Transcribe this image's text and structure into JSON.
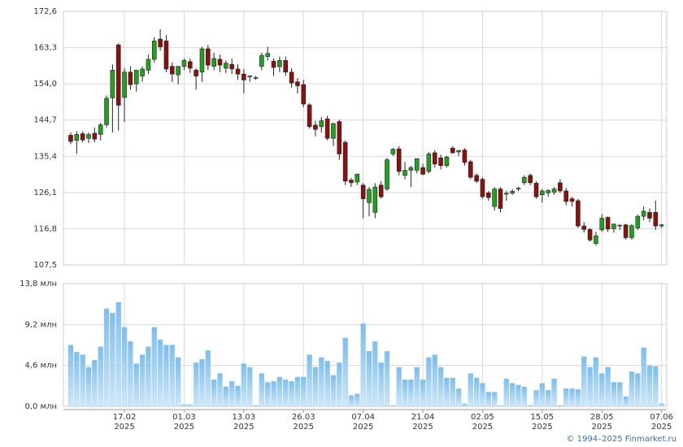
{
  "chart_data": [
    {
      "type": "candlestick",
      "up_color": "#22a022",
      "down_color": "#8b1010",
      "ylim": [
        107.5,
        172.6
      ],
      "yticks": [
        {
          "value": 107.5,
          "label": "107,5"
        },
        {
          "value": 116.8,
          "label": "116,8"
        },
        {
          "value": 126.1,
          "label": "126,1"
        },
        {
          "value": 135.4,
          "label": "135,4"
        },
        {
          "value": 144.7,
          "label": "144,7"
        },
        {
          "value": 154.0,
          "label": "154,0"
        },
        {
          "value": 163.3,
          "label": "163,3"
        },
        {
          "value": 172.6,
          "label": "172,6"
        }
      ],
      "grid": true,
      "open": [
        140.8,
        139.5,
        141.2,
        140.0,
        141.3,
        141.0,
        143.5,
        150.4,
        164.0,
        150.5,
        157.0,
        154.0,
        156.0,
        157.5,
        160.3,
        165.5,
        165.0,
        158.5,
        156.3,
        158.5,
        159.7,
        157.5,
        157.0,
        163.0,
        158.5,
        160.3,
        158.0,
        159.0,
        157.8,
        156.5,
        155.8,
        155.5,
        158.5,
        161.0,
        159.8,
        158.4,
        160.0,
        157.0,
        154.5,
        153.8,
        148.6,
        143.4,
        143.0,
        145.0,
        140.0,
        144.3,
        139.0,
        129.3,
        128.8,
        128.0,
        123.5,
        121.0,
        128.0,
        127.0,
        136.0,
        137.3,
        130.5,
        131.8,
        131.8,
        132.5,
        131.5,
        136.3,
        135.0,
        133.0,
        137.5,
        136.5,
        137.0,
        134.0,
        130.5,
        129.5,
        126.0,
        122.5,
        127.0,
        125.8,
        125.9,
        127.0,
        128.6,
        130.5,
        128.5,
        125.5,
        126.0,
        126.2,
        128.6,
        126.5,
        124.5,
        124.0,
        117.5,
        116.6,
        113.0,
        116.5,
        119.7,
        116.8,
        117.5,
        117.8,
        114.5,
        117.0,
        120.0,
        121.0,
        121.0,
        117.5
      ],
      "high": [
        141.5,
        141.8,
        141.8,
        141.5,
        142.8,
        144.0,
        151.0,
        159.0,
        164.4,
        158.0,
        158.5,
        157.5,
        158.5,
        161.5,
        166.0,
        168.0,
        166.5,
        159.5,
        158.5,
        160.5,
        160.5,
        158.0,
        163.5,
        164.0,
        162.0,
        161.5,
        160.0,
        160.5,
        159.0,
        157.8,
        156.2,
        156.0,
        162.0,
        163.5,
        160.5,
        161.0,
        161.0,
        158.0,
        155.5,
        155.0,
        149.0,
        144.5,
        145.5,
        145.8,
        144.0,
        144.8,
        139.5,
        129.8,
        131.0,
        128.5,
        127.5,
        128.5,
        129.0,
        135.0,
        137.5,
        138.0,
        134.0,
        133.0,
        134.5,
        133.5,
        136.5,
        137.0,
        135.8,
        135.5,
        138.0,
        137.0,
        137.5,
        134.5,
        131.0,
        130.0,
        126.5,
        127.5,
        127.5,
        126.5,
        127.0,
        127.5,
        130.5,
        131.0,
        129.0,
        127.0,
        127.0,
        127.5,
        129.5,
        127.3,
        125.0,
        124.5,
        118.5,
        117.0,
        116.0,
        120.5,
        120.0,
        118.0,
        118.0,
        118.0,
        118.0,
        120.5,
        122.5,
        122.0,
        124.0,
        118.0
      ],
      "low": [
        138.5,
        136.0,
        139.0,
        138.8,
        139.0,
        139.5,
        142.8,
        141.5,
        142.0,
        144.2,
        152.5,
        152.0,
        154.5,
        156.5,
        159.5,
        162.5,
        157.0,
        154.5,
        153.8,
        157.5,
        156.8,
        152.5,
        154.5,
        157.5,
        157.5,
        157.0,
        156.8,
        156.5,
        155.0,
        151.5,
        154.5,
        155.0,
        157.5,
        160.0,
        156.0,
        157.0,
        156.0,
        153.0,
        151.5,
        148.0,
        142.5,
        140.5,
        141.5,
        139.5,
        138.0,
        134.5,
        128.0,
        127.5,
        128.0,
        119.5,
        120.0,
        119.5,
        124.5,
        126.5,
        135.5,
        130.5,
        129.5,
        127.5,
        131.0,
        130.5,
        131.0,
        132.5,
        132.0,
        132.5,
        136.0,
        135.5,
        133.0,
        129.5,
        128.5,
        124.5,
        124.0,
        121.5,
        121.0,
        124.0,
        125.5,
        126.5,
        128.0,
        128.0,
        124.5,
        123.5,
        125.0,
        125.5,
        126.0,
        122.8,
        122.5,
        117.0,
        115.8,
        113.5,
        112.5,
        116.0,
        116.0,
        115.8,
        116.5,
        114.0,
        114.0,
        116.5,
        119.0,
        118.5,
        116.5,
        117.0
      ],
      "close": [
        139.2,
        141.0,
        139.6,
        141.0,
        139.8,
        143.5,
        150.3,
        157.5,
        148.5,
        157.0,
        153.8,
        157.5,
        157.8,
        160.3,
        165.0,
        163.5,
        157.8,
        156.5,
        158.5,
        160.0,
        158.0,
        156.0,
        163.0,
        158.8,
        160.5,
        158.8,
        159.3,
        157.8,
        156.5,
        155.0,
        156.0,
        155.6,
        161.3,
        161.8,
        158.2,
        160.0,
        157.0,
        154.2,
        153.5,
        148.8,
        143.0,
        142.3,
        144.5,
        140.0,
        143.8,
        136.0,
        129.0,
        128.6,
        130.8,
        124.5,
        126.9,
        127.5,
        125.0,
        134.5,
        137.2,
        131.5,
        131.8,
        132.5,
        134.8,
        130.8,
        136.0,
        133.4,
        133.0,
        135.2,
        136.3,
        136.9,
        133.8,
        130.0,
        129.0,
        125.0,
        124.8,
        127.0,
        122.0,
        125.9,
        126.4,
        127.2,
        130.0,
        128.6,
        125.0,
        126.5,
        126.6,
        127.0,
        126.5,
        123.8,
        123.8,
        117.5,
        116.6,
        113.9,
        115.0,
        119.5,
        116.7,
        118.0,
        117.7,
        114.5,
        117.6,
        120.0,
        121.3,
        119.5,
        117.5,
        117.8
      ]
    },
    {
      "type": "bar",
      "color": "#8cc6f0",
      "ylim": [
        0,
        13.8
      ],
      "yticks": [
        {
          "value": 0,
          "label": "0,0 млн"
        },
        {
          "value": 4.6,
          "label": "4,6 млн"
        },
        {
          "value": 9.2,
          "label": "9,2 млн"
        },
        {
          "value": 13.8,
          "label": "13,8 млн"
        }
      ],
      "grid": true,
      "categories": [
        null,
        null,
        null,
        null,
        null,
        null,
        null,
        null,
        null,
        "17.02\n2025",
        null,
        null,
        null,
        null,
        null,
        null,
        null,
        null,
        null,
        "01.03\n2025",
        null,
        null,
        null,
        null,
        null,
        null,
        null,
        null,
        null,
        "13.03\n2025",
        null,
        null,
        null,
        null,
        null,
        null,
        null,
        null,
        null,
        "26.03\n2025",
        null,
        null,
        null,
        null,
        null,
        null,
        null,
        null,
        null,
        "07.04\n2025",
        null,
        null,
        null,
        null,
        null,
        null,
        null,
        null,
        null,
        "21.04\n2025",
        null,
        null,
        null,
        null,
        null,
        null,
        null,
        null,
        null,
        "02.05\n2025",
        null,
        null,
        null,
        null,
        null,
        null,
        null,
        null,
        null,
        "15.05\n2025",
        null,
        null,
        null,
        null,
        null,
        null,
        null,
        null,
        null,
        "28.05\n2025",
        null,
        null,
        null,
        null,
        null,
        null,
        null,
        null,
        null,
        "07.06\n2025"
      ],
      "values": [
        6.9,
        6.1,
        5.8,
        4.4,
        5.2,
        6.7,
        11.0,
        10.5,
        11.7,
        8.9,
        7.3,
        4.8,
        5.8,
        6.7,
        8.9,
        7.5,
        6.9,
        6.9,
        5.5,
        0.2,
        0.2,
        4.9,
        5.3,
        6.3,
        3.0,
        3.7,
        2.2,
        2.8,
        2.3,
        4.8,
        4.4,
        0.1,
        3.7,
        2.7,
        2.8,
        3.3,
        3.0,
        2.8,
        3.3,
        3.3,
        5.8,
        4.4,
        5.5,
        5.1,
        3.5,
        4.9,
        7.7,
        1.2,
        1.4,
        9.3,
        6.2,
        7.3,
        4.9,
        6.2,
        0.1,
        4.4,
        3.0,
        3.0,
        4.4,
        3.0,
        5.5,
        5.8,
        4.4,
        3.2,
        3.2,
        2.0,
        0.3,
        3.7,
        3.2,
        2.6,
        1.6,
        1.6,
        0.1,
        3.1,
        2.6,
        2.4,
        2.2,
        0.1,
        1.8,
        2.6,
        1.8,
        3.1,
        0.1,
        2.0,
        2.0,
        1.9,
        5.6,
        4.4,
        5.5,
        3.7,
        4.4,
        2.7,
        2.7,
        1.1,
        3.9,
        3.7,
        6.6,
        4.6,
        4.5,
        0.3
      ]
    }
  ],
  "footer": "© 1994–2025 Finmarket.ru"
}
